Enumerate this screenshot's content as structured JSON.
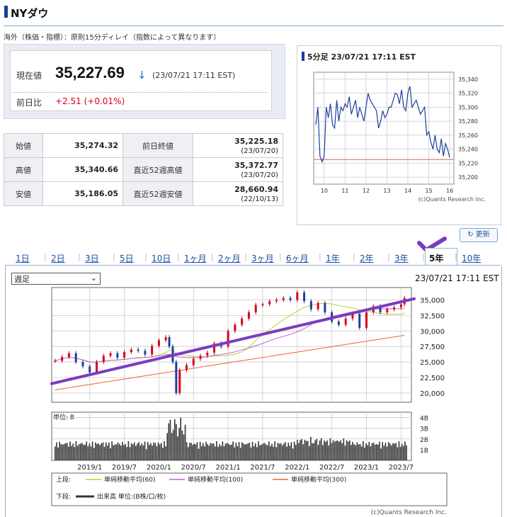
{
  "page": {
    "title": "NYダウ",
    "note": "海外（株価・指標）：原則15分ディレイ（指数によって異なります）"
  },
  "quote": {
    "current_label": "現在値",
    "price": "35,227.69",
    "arrow": "↓",
    "time": "(23/07/21 17:11 EST)",
    "change_label": "前日比",
    "change_value": "+2.51",
    "change_pct": "(+0.01%)"
  },
  "stats": [
    {
      "l1": "始値",
      "v1": "35,274.32",
      "l2": "前日終値",
      "v2": "35,225.18",
      "d2": "(23/07/20)"
    },
    {
      "l1": "高値",
      "v1": "35,340.66",
      "l2": "直近52週高値",
      "v2": "35,372.77",
      "d2": "(23/07/20)"
    },
    {
      "l1": "安値",
      "v1": "35,186.05",
      "l2": "直近52週安値",
      "v2": "28,660.94",
      "d2": "(22/10/13)"
    }
  ],
  "mini_chart": {
    "title": "5分足 23/07/21 17:11 EST",
    "copyright": "(c)Quants Research Inc.",
    "chart_data": {
      "type": "line",
      "x_ticks": [
        "10",
        "11",
        "12",
        "13",
        "14",
        "15",
        "16"
      ],
      "y_ticks": [
        "35,340",
        "35,320",
        "35,300",
        "35,280",
        "35,260",
        "35,240",
        "35,220",
        "35,200"
      ],
      "ylim": [
        35190,
        35350
      ],
      "xlim": [
        9.5,
        16.2
      ],
      "prev_close": 35225.18,
      "x": [
        9.6,
        9.7,
        9.8,
        9.9,
        10.0,
        10.1,
        10.2,
        10.3,
        10.4,
        10.5,
        10.6,
        10.7,
        10.8,
        10.9,
        11.0,
        11.1,
        11.2,
        11.3,
        11.4,
        11.5,
        11.6,
        11.7,
        11.8,
        11.9,
        12.0,
        12.1,
        12.2,
        12.3,
        12.4,
        12.5,
        12.6,
        12.7,
        12.8,
        12.9,
        13.0,
        13.1,
        13.2,
        13.3,
        13.4,
        13.5,
        13.6,
        13.7,
        13.8,
        13.9,
        14.0,
        14.1,
        14.2,
        14.3,
        14.4,
        14.5,
        14.6,
        14.7,
        14.8,
        14.9,
        15.0,
        15.1,
        15.2,
        15.3,
        15.4,
        15.5,
        15.6,
        15.7,
        15.8,
        15.9,
        16.0
      ],
      "y": [
        35275,
        35300,
        35230,
        35222,
        35230,
        35300,
        35285,
        35305,
        35275,
        35270,
        35310,
        35280,
        35300,
        35295,
        35305,
        35300,
        35315,
        35290,
        35300,
        35310,
        35285,
        35300,
        35290,
        35280,
        35300,
        35320,
        35310,
        35305,
        35300,
        35295,
        35270,
        35280,
        35295,
        35285,
        35290,
        35300,
        35300,
        35310,
        35320,
        35318,
        35305,
        35325,
        35300,
        35295,
        35320,
        35330,
        35300,
        35305,
        35310,
        35300,
        35290,
        35295,
        35300,
        35260,
        35265,
        35250,
        35240,
        35260,
        35240,
        35235,
        35255,
        35230,
        35248,
        35240,
        35228
      ]
    }
  },
  "update_label": "更新",
  "tabs": [
    "1日",
    "2日",
    "3日",
    "5日",
    "10日",
    "1ヶ月",
    "2ヶ月",
    "3ヶ月",
    "6ヶ月",
    "1年",
    "2年",
    "3年",
    "5年",
    "10年"
  ],
  "active_tab": "5年",
  "main_chart": {
    "select_value": "週足",
    "timestamp": "23/07/21 17:11 EST",
    "copyright": "(c)Quants Research Inc.",
    "unit_label": "単位: B",
    "legend_upper_label": "上段:",
    "legend_lower_label": "下段:",
    "legend_ma60": "単純移動平均(60)",
    "legend_ma100": "単純移動平均(100)",
    "legend_ma300": "単純移動平均(300)",
    "legend_volume": "出来高 単位:(B株/口/枚)",
    "colors": {
      "candle_up": "#d8001c",
      "candle_down": "#1a3f9e",
      "ma60": "#b9cf3c",
      "ma100": "#c060d0",
      "ma300": "#f06030",
      "trend": "#7a3cc0",
      "volume": "#333333"
    },
    "chart_data": {
      "type": "line",
      "x_ticks": [
        "2019/1",
        "2019/7",
        "2020/1",
        "2020/7",
        "2021/1",
        "2021/7",
        "2022/1",
        "2022/7",
        "2023/1",
        "2023/7"
      ],
      "y_ticks": [
        "35,000",
        "32,500",
        "30,000",
        "27,500",
        "25,000",
        "22,500",
        "20,000"
      ],
      "ylim": [
        18500,
        37000
      ],
      "volume_ticks": [
        "4B",
        "3B",
        "2B",
        "1B"
      ],
      "volume_ylim": [
        0,
        4.5
      ],
      "x": [
        2018.5,
        2018.6,
        2018.7,
        2018.8,
        2018.9,
        2019.0,
        2019.1,
        2019.2,
        2019.3,
        2019.4,
        2019.5,
        2019.6,
        2019.7,
        2019.8,
        2019.9,
        2020.0,
        2020.1,
        2020.15,
        2020.2,
        2020.25,
        2020.3,
        2020.4,
        2020.5,
        2020.6,
        2020.7,
        2020.8,
        2020.9,
        2021.0,
        2021.1,
        2021.2,
        2021.3,
        2021.4,
        2021.5,
        2021.6,
        2021.7,
        2021.8,
        2021.9,
        2022.0,
        2022.1,
        2022.2,
        2022.3,
        2022.4,
        2022.5,
        2022.6,
        2022.7,
        2022.8,
        2022.9,
        2023.0,
        2023.1,
        2023.2,
        2023.3,
        2023.4,
        2023.5,
        2023.55
      ],
      "close": [
        25200,
        25800,
        26400,
        25000,
        24300,
        23300,
        25000,
        26000,
        26400,
        25700,
        26600,
        27000,
        26800,
        26200,
        27600,
        28500,
        29000,
        27500,
        25000,
        20000,
        23700,
        24500,
        25500,
        26000,
        26500,
        28000,
        27500,
        30000,
        31000,
        32000,
        33000,
        34200,
        34300,
        34800,
        35000,
        35300,
        35000,
        36200,
        34800,
        33500,
        34500,
        33000,
        31500,
        31000,
        32000,
        32800,
        30500,
        33000,
        34000,
        33000,
        33500,
        33800,
        34300,
        35300
      ]
    },
    "trend_line": {
      "from": [
        2018.45,
        21500
      ],
      "to": [
        2023.65,
        35200
      ]
    }
  }
}
